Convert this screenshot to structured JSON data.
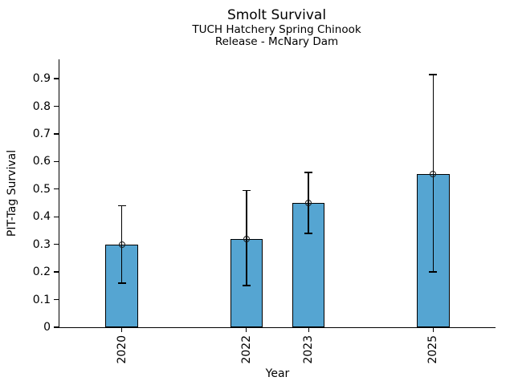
{
  "chart_data": {
    "type": "bar",
    "title": "Smolt Survival",
    "subtitle_lines": [
      "TUCH Hatchery Spring Chinook",
      "Release - McNary Dam"
    ],
    "xlabel": "Year",
    "ylabel": "PIT-Tag Survival",
    "x": [
      2020,
      2022,
      2023,
      2025
    ],
    "x_tick_labels": [
      "2020",
      "2022",
      "2023",
      "2025"
    ],
    "values": [
      0.3,
      0.32,
      0.45,
      0.555
    ],
    "error_low": [
      0.16,
      0.15,
      0.34,
      0.2
    ],
    "error_high": [
      0.44,
      0.495,
      0.56,
      0.915
    ],
    "yticks": [
      0,
      0.1,
      0.2,
      0.3,
      0.4,
      0.5,
      0.6,
      0.7,
      0.8,
      0.9
    ],
    "ytick_labels": [
      "0",
      "0.1",
      "0.2",
      "0.3",
      "0.4",
      "0.5",
      "0.6",
      "0.7",
      "0.8",
      "0.9"
    ],
    "ylim": [
      0,
      0.97
    ],
    "xlim": [
      2019,
      2026
    ],
    "bar_width_years": 0.52,
    "grid": false,
    "legend": null,
    "marker": "circle-open",
    "colors": {
      "bar_fill": "#55a5d2",
      "bar_edge": "#000000",
      "error": "#000000",
      "marker_edge": "#1a1a1a",
      "text": "#000000",
      "background": "#ffffff"
    }
  }
}
